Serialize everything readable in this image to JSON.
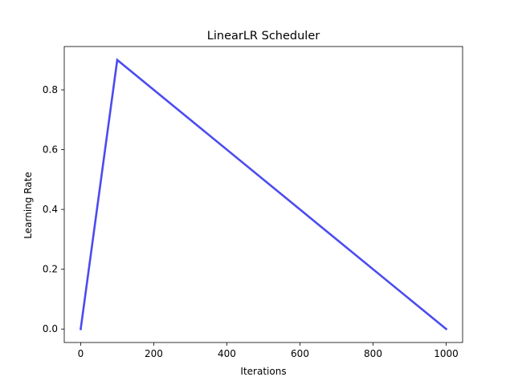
{
  "chart_data": {
    "type": "line",
    "title": "LinearLR Scheduler",
    "xlabel": "Iterations",
    "ylabel": "Learning Rate",
    "xlim": [
      -45,
      1045
    ],
    "ylim": [
      -0.045,
      0.945
    ],
    "xticks": [
      0,
      200,
      400,
      600,
      800,
      1000
    ],
    "yticks": [
      0.0,
      0.2,
      0.4,
      0.6,
      0.8
    ],
    "xtick_labels": [
      "0",
      "200",
      "400",
      "600",
      "800",
      "1000"
    ],
    "ytick_labels": [
      "0.0",
      "0.2",
      "0.4",
      "0.6",
      "0.8"
    ],
    "grid": false,
    "legend": "none",
    "series": [
      {
        "color": "#4b4bf0",
        "x": [
          0,
          100,
          1000
        ],
        "y": [
          0.0,
          0.9,
          0.0
        ]
      }
    ]
  }
}
